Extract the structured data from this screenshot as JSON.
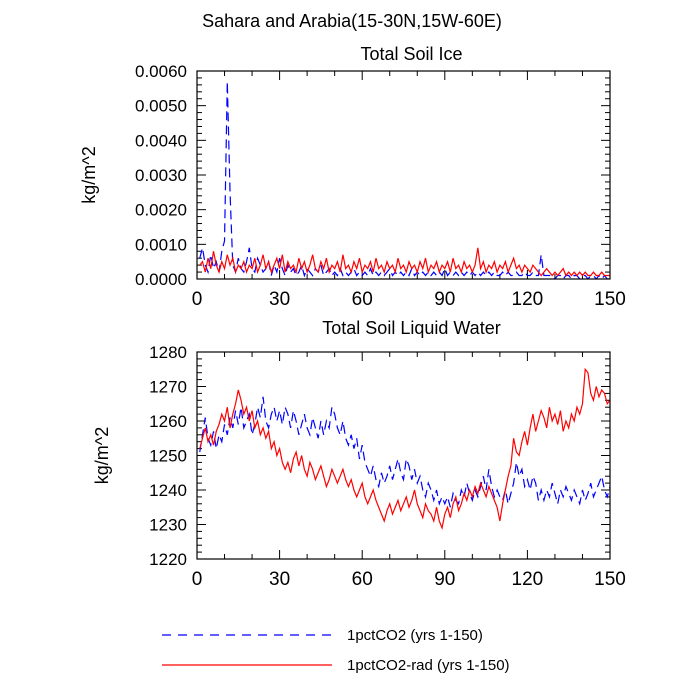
{
  "figure": {
    "suptitle": "Sahara and Arabia(15-30N,15W-60E)"
  },
  "legend": {
    "placement": "bottom",
    "entries": [
      {
        "label": "1pctCO2 (yrs 1-150)",
        "color": "#0000ff",
        "dash": "dashed"
      },
      {
        "label": "1pctCO2-rad (yrs 1-150)",
        "color": "#ff0000",
        "dash": "solid"
      }
    ]
  },
  "chart_data": [
    {
      "type": "line",
      "title": "Total Soil Ice",
      "xlabel": "",
      "ylabel": "kg/m^2",
      "xlim": [
        0,
        150
      ],
      "ylim": [
        0,
        0.006
      ],
      "xticks": [
        "0",
        "30",
        "60",
        "90",
        "120",
        "150"
      ],
      "yticks": [
        "0.0000",
        "0.0010",
        "0.0020",
        "0.0030",
        "0.0040",
        "0.0050",
        "0.0060"
      ],
      "x_start": 1,
      "series": [
        {
          "name": "1pctCO2 (yrs 1-150)",
          "color": "#0000ff",
          "dash": "dashed",
          "values": [
            0.0006,
            0.0009,
            0.0004,
            0.0002,
            0.0007,
            0.0003,
            0.0005,
            0.0002,
            0.0008,
            0.0011,
            0.0057,
            0.0025,
            0.0004,
            0.0002,
            0.0006,
            0.0003,
            0.0002,
            0.0005,
            0.0009,
            0.0003,
            0.0002,
            0.0006,
            0.0004,
            0.0002,
            0.0003,
            0.0005,
            0.0001,
            0.0004,
            0.0002,
            0.0006,
            0.0003,
            0.0001,
            0.0004,
            0.0002,
            0.0003,
            0.0001,
            0.0002,
            0.0004,
            0.0001,
            0.0003,
            0.0002,
            0.0001,
            0.0003,
            0.0002,
            0.0004,
            0.0001,
            0.0002,
            0.0003,
            0.0001,
            0.0002,
            0.0001,
            0.0003,
            0.0001,
            0.0002,
            0.0001,
            0.0002,
            0.0003,
            0.0001,
            0.0002,
            0.0001,
            0.0002,
            0.0001,
            0.0003,
            0.0001,
            0.0002,
            0.0001,
            0.0002,
            0.0001,
            0.0002,
            0.0003,
            0.0001,
            0.0002,
            0.0001,
            0.0002,
            0.0001,
            0.0002,
            0.0001,
            0.0003,
            0.0001,
            0.0002,
            0.0001,
            0.0002,
            0.0001,
            0.0002,
            0.0001,
            0.0002,
            0.0001,
            0.0002,
            0.0001,
            0.0003,
            0.0001,
            0.0002,
            0.0001,
            0.0002,
            0.0001,
            0.0002,
            0.0001,
            0.0002,
            0.0001,
            0.0002,
            0.0001,
            0.0002,
            0.0001,
            0.0002,
            0.0001,
            0.0002,
            0.0001,
            0.0002,
            0.0001,
            0.0001,
            0.0002,
            0.0001,
            0.0002,
            0.0001,
            0.0001,
            0.0002,
            0.0001,
            0.0001,
            0.0002,
            0.0001,
            0.0001,
            0.0002,
            0.0001,
            0.0001,
            0.0007,
            0.0001,
            0.0001,
            0.0001,
            0.0001,
            0.0,
            0.0001,
            0.0001,
            0.0,
            0.0001,
            0.0001,
            0.0,
            0.0001,
            0.0001,
            0.0,
            0.0001,
            0.0001,
            0.0,
            0.0001,
            0.0001,
            0.0,
            0.0001,
            0.0,
            0.0001,
            0.0,
            0.0
          ]
        },
        {
          "name": "1pctCO2-rad (yrs 1-150)",
          "color": "#ff0000",
          "dash": "solid",
          "values": [
            0.0004,
            0.0005,
            0.0002,
            0.0006,
            0.0003,
            0.0008,
            0.0004,
            0.0002,
            0.0005,
            0.0003,
            0.0007,
            0.0004,
            0.0006,
            0.0002,
            0.0004,
            0.0003,
            0.0005,
            0.0002,
            0.0004,
            0.0003,
            0.0006,
            0.0002,
            0.0004,
            0.0007,
            0.0003,
            0.0005,
            0.0002,
            0.0004,
            0.0006,
            0.0003,
            0.0007,
            0.0002,
            0.0005,
            0.0003,
            0.0004,
            0.0002,
            0.0006,
            0.0003,
            0.0005,
            0.0002,
            0.0004,
            0.0007,
            0.0003,
            0.0002,
            0.0005,
            0.0003,
            0.0006,
            0.0002,
            0.0004,
            0.0003,
            0.0005,
            0.0002,
            0.0007,
            0.0003,
            0.0004,
            0.0002,
            0.0005,
            0.0003,
            0.0006,
            0.0002,
            0.0004,
            0.0003,
            0.0005,
            0.0002,
            0.0006,
            0.0003,
            0.0004,
            0.0002,
            0.0005,
            0.0003,
            0.0004,
            0.0002,
            0.0006,
            0.0003,
            0.0004,
            0.0002,
            0.0005,
            0.0003,
            0.0004,
            0.0002,
            0.0005,
            0.0003,
            0.0006,
            0.0002,
            0.0004,
            0.0003,
            0.0005,
            0.0002,
            0.0004,
            0.0003,
            0.0005,
            0.0002,
            0.0006,
            0.0003,
            0.0004,
            0.0002,
            0.0005,
            0.0003,
            0.0004,
            0.0002,
            0.0004,
            0.0009,
            0.0003,
            0.0005,
            0.0002,
            0.0004,
            0.0003,
            0.0005,
            0.0002,
            0.0004,
            0.0003,
            0.0005,
            0.0002,
            0.0004,
            0.0006,
            0.0003,
            0.0004,
            0.0002,
            0.0004,
            0.0003,
            0.0002,
            0.0004,
            0.0003,
            0.0002,
            0.0001,
            0.0002,
            0.0003,
            0.0002,
            0.0001,
            0.0002,
            0.0001,
            0.0002,
            0.0003,
            0.0001,
            0.0002,
            0.0001,
            0.0002,
            0.0001,
            0.0002,
            0.0001,
            0.0002,
            0.0001,
            0.0001,
            0.0002,
            0.0001,
            0.0001,
            0.0002,
            0.0001,
            0.0001,
            0.0001
          ]
        }
      ]
    },
    {
      "type": "line",
      "title": "Total Soil Liquid Water",
      "xlabel": "",
      "ylabel": "kg/m^2",
      "xlim": [
        0,
        150
      ],
      "ylim": [
        1220,
        1280
      ],
      "xticks": [
        "0",
        "30",
        "60",
        "90",
        "120",
        "150"
      ],
      "yticks": [
        "1220",
        "1230",
        "1240",
        "1250",
        "1260",
        "1270",
        "1280"
      ],
      "x_start": 1,
      "series": [
        {
          "name": "1pctCO2 (yrs 1-150)",
          "color": "#0000ff",
          "dash": "dashed",
          "values": [
            1251,
            1256,
            1261,
            1255,
            1253,
            1257,
            1252,
            1256,
            1254,
            1259,
            1256,
            1261,
            1258,
            1263,
            1259,
            1264,
            1258,
            1260,
            1262,
            1256,
            1259,
            1264,
            1261,
            1267,
            1260,
            1258,
            1262,
            1264,
            1260,
            1263,
            1259,
            1264,
            1262,
            1258,
            1263,
            1260,
            1256,
            1259,
            1262,
            1258,
            1256,
            1261,
            1258,
            1255,
            1260,
            1256,
            1260,
            1258,
            1264,
            1262,
            1258,
            1256,
            1260,
            1255,
            1253,
            1256,
            1252,
            1255,
            1249,
            1253,
            1248,
            1246,
            1244,
            1247,
            1243,
            1241,
            1245,
            1242,
            1244,
            1247,
            1243,
            1246,
            1249,
            1245,
            1243,
            1249,
            1247,
            1243,
            1246,
            1242,
            1244,
            1240,
            1238,
            1242,
            1240,
            1237,
            1240,
            1236,
            1238,
            1236,
            1238,
            1235,
            1239,
            1237,
            1236,
            1240,
            1238,
            1242,
            1239,
            1237,
            1240,
            1238,
            1241,
            1244,
            1240,
            1246,
            1241,
            1238,
            1240,
            1238,
            1237,
            1240,
            1236,
            1239,
            1242,
            1248,
            1244,
            1246,
            1241,
            1243,
            1240,
            1244,
            1242,
            1237,
            1240,
            1237,
            1240,
            1238,
            1242,
            1239,
            1236,
            1240,
            1238,
            1241,
            1239,
            1237,
            1240,
            1238,
            1236,
            1240,
            1237,
            1239,
            1242,
            1238,
            1240,
            1242,
            1244,
            1240,
            1238,
            1241
          ]
        },
        {
          "name": "1pctCO2-rad (yrs 1-150)",
          "color": "#ff0000",
          "dash": "solid",
          "values": [
            1252,
            1255,
            1258,
            1254,
            1256,
            1253,
            1257,
            1259,
            1262,
            1260,
            1264,
            1258,
            1262,
            1265,
            1269,
            1266,
            1262,
            1264,
            1260,
            1263,
            1258,
            1260,
            1256,
            1258,
            1255,
            1257,
            1252,
            1254,
            1250,
            1252,
            1248,
            1246,
            1248,
            1245,
            1249,
            1251,
            1247,
            1250,
            1246,
            1244,
            1248,
            1246,
            1243,
            1245,
            1247,
            1244,
            1241,
            1243,
            1246,
            1244,
            1242,
            1244,
            1246,
            1243,
            1241,
            1243,
            1240,
            1238,
            1240,
            1242,
            1238,
            1236,
            1238,
            1240,
            1237,
            1235,
            1233,
            1231,
            1234,
            1236,
            1233,
            1235,
            1237,
            1234,
            1236,
            1238,
            1235,
            1237,
            1240,
            1236,
            1234,
            1232,
            1236,
            1234,
            1233,
            1231,
            1235,
            1231,
            1229,
            1233,
            1235,
            1232,
            1236,
            1238,
            1234,
            1236,
            1239,
            1237,
            1240,
            1238,
            1241,
            1239,
            1242,
            1240,
            1238,
            1241,
            1239,
            1237,
            1235,
            1231,
            1236,
            1240,
            1244,
            1247,
            1255,
            1251,
            1250,
            1254,
            1257,
            1253,
            1258,
            1262,
            1257,
            1260,
            1263,
            1261,
            1258,
            1264,
            1260,
            1262,
            1259,
            1263,
            1257,
            1260,
            1258,
            1262,
            1260,
            1264,
            1262,
            1265,
            1275,
            1274,
            1268,
            1266,
            1270,
            1267,
            1269,
            1268,
            1265,
            1266
          ]
        }
      ]
    }
  ]
}
